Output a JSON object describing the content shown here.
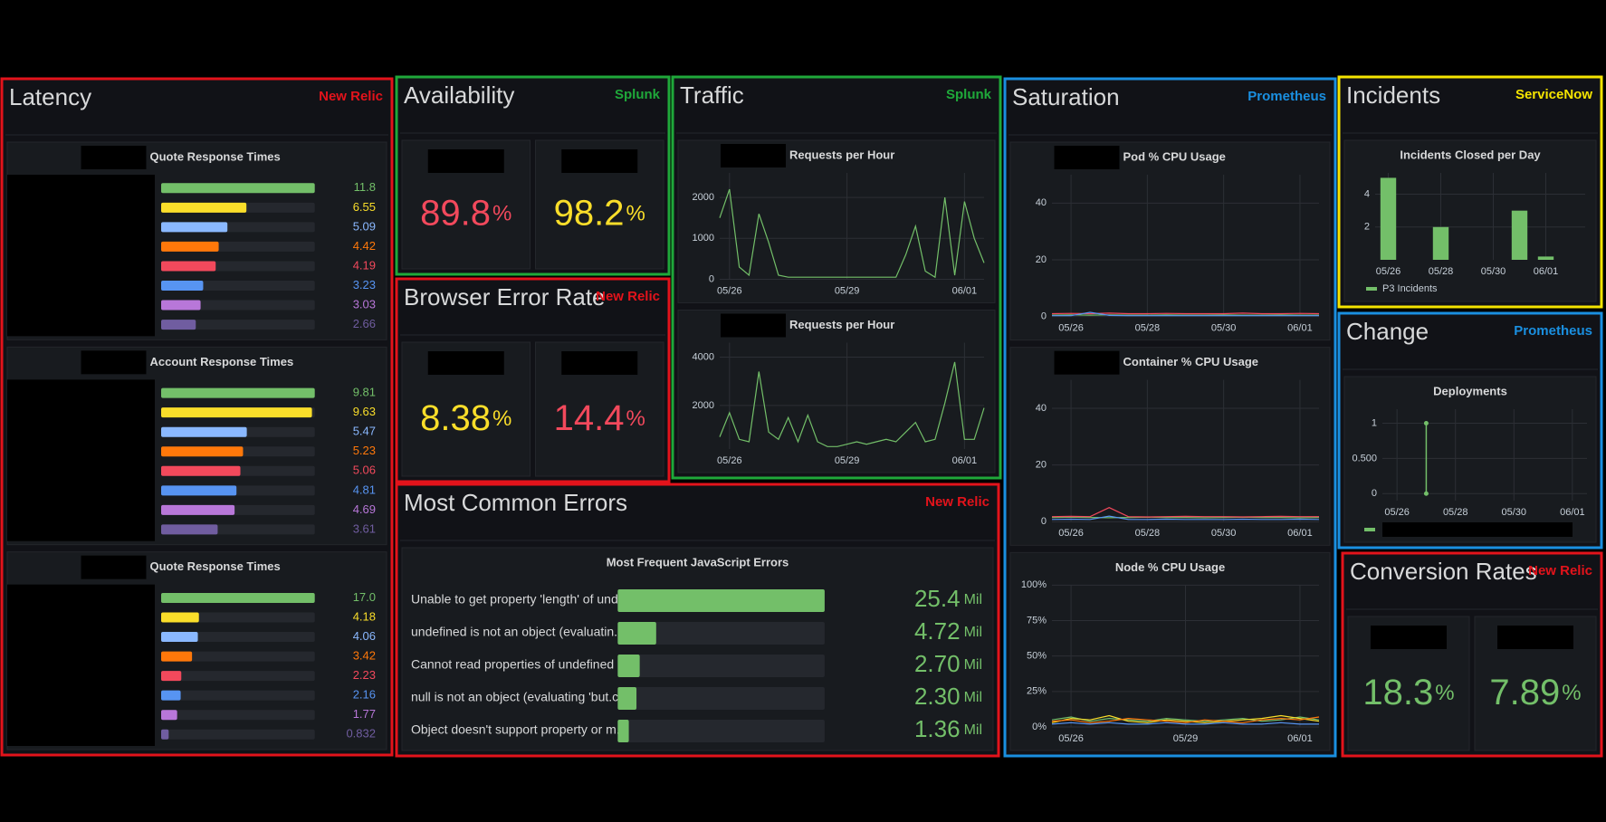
{
  "panels": [
    {
      "title": "Latency",
      "source": "New Relic",
      "color": "#e3131b",
      "charts": [
        {
          "type": "bargauge",
          "title": "Quote Response Times",
          "values": [
            11.8,
            6.55,
            5.09,
            4.42,
            4.19,
            3.23,
            3.03,
            2.66
          ],
          "colors": [
            "#73bf69",
            "#fade2a",
            "#8ab8ff",
            "#ff780a",
            "#f2495c",
            "#5794f2",
            "#b877d9",
            "#705da0"
          ]
        },
        {
          "type": "bargauge",
          "title": "Account Response Times",
          "values": [
            9.81,
            9.63,
            5.47,
            5.23,
            5.06,
            4.81,
            4.69,
            3.61
          ],
          "colors": [
            "#73bf69",
            "#fade2a",
            "#8ab8ff",
            "#ff780a",
            "#f2495c",
            "#5794f2",
            "#b877d9",
            "#705da0"
          ]
        },
        {
          "type": "bargauge",
          "title": "Quote Response Times",
          "values": [
            17,
            4.18,
            4.06,
            3.42,
            2.23,
            2.16,
            1.77,
            0.832
          ],
          "value_labels": [
            "17.0",
            "4.18",
            "4.06",
            "3.42",
            "2.23",
            "2.16",
            "1.77",
            "0.832"
          ],
          "colors": [
            "#73bf69",
            "#fade2a",
            "#8ab8ff",
            "#ff780a",
            "#f2495c",
            "#5794f2",
            "#b877d9",
            "#705da0"
          ]
        }
      ]
    },
    {
      "title": "Availability",
      "source": "Splunk",
      "color": "#1fa83a",
      "charts": [
        {
          "type": "stat",
          "values": [
            89.8,
            98.2
          ],
          "unit": "%",
          "colors": [
            "#f2495c",
            "#fade2a"
          ]
        }
      ]
    },
    {
      "title": "Browser Error Rate",
      "source": "New Relic",
      "color": "#e3131b",
      "charts": [
        {
          "type": "stat",
          "values": [
            8.38,
            14.4
          ],
          "unit": "%",
          "colors": [
            "#fade2a",
            "#f2495c"
          ]
        }
      ]
    },
    {
      "title": "Most Common Errors",
      "source": "New Relic",
      "color": "#e3131b",
      "charts": [
        {
          "type": "barlist",
          "title": "Most Frequent JavaScript Errors",
          "labels": [
            "Unable to get property 'length' of und...",
            "undefined is not an object (evaluatin...",
            "Cannot read properties of undefined ...",
            "null is not an object (evaluating 'but.c...",
            "Object doesn't support property or m..."
          ],
          "values": [
            25.4,
            4.72,
            2.7,
            2.3,
            1.36
          ],
          "value_labels": [
            "25.4",
            "4.72",
            "2.70",
            "2.30",
            "1.36"
          ],
          "unit": "Mil",
          "color": "#73bf69"
        }
      ]
    },
    {
      "title": "Traffic",
      "source": "Splunk",
      "color": "#1fa83a",
      "charts": [
        {
          "type": "line",
          "title": "Requests per Hour",
          "categories": [
            null,
            "05/26",
            null,
            null,
            null,
            null,
            null,
            null,
            null,
            null,
            null,
            null,
            null,
            "05/29",
            null,
            null,
            null,
            null,
            null,
            null,
            null,
            null,
            null,
            null,
            null,
            "06/01",
            null,
            null
          ],
          "ylim": [
            0,
            2600
          ],
          "yticks": [
            0,
            1000,
            2000
          ],
          "series": [
            {
              "color": "#73bf69",
              "values": [
                1500,
                2200,
                300,
                100,
                1600,
                900,
                100,
                50,
                50,
                50,
                50,
                50,
                50,
                50,
                50,
                50,
                50,
                50,
                50,
                600,
                1300,
                200,
                50,
                2000,
                100,
                1900,
                1000,
                400
              ]
            }
          ]
        },
        {
          "type": "line",
          "title": "Requests per Hour",
          "categories": [
            null,
            "05/26",
            null,
            null,
            null,
            null,
            null,
            null,
            null,
            null,
            null,
            null,
            null,
            "05/29",
            null,
            null,
            null,
            null,
            null,
            null,
            null,
            null,
            null,
            null,
            null,
            "06/01",
            null,
            null
          ],
          "ylim": [
            200,
            4600
          ],
          "yticks": [
            2000,
            4000
          ],
          "series": [
            {
              "color": "#73bf69",
              "values": [
                700,
                1700,
                600,
                500,
                3400,
                900,
                600,
                1500,
                500,
                1600,
                500,
                300,
                300,
                400,
                500,
                400,
                500,
                600,
                500,
                900,
                1300,
                500,
                600,
                2100,
                3800,
                600,
                600,
                1900
              ]
            }
          ]
        }
      ]
    },
    {
      "title": "Saturation",
      "source": "Prometheus",
      "color": "#1a8fe0",
      "charts": [
        {
          "type": "line",
          "title": "Pod % CPU Usage",
          "categories": [
            null,
            "05/26",
            null,
            null,
            null,
            "05/28",
            null,
            null,
            null,
            "05/30",
            null,
            null,
            null,
            "06/01",
            null
          ],
          "ylim": [
            0,
            50
          ],
          "yticks": [
            0,
            20,
            40
          ],
          "series": [
            {
              "color": "#73bf69",
              "values": [
                0.5,
                0.6,
                0.5,
                0.6,
                0.5,
                0.5,
                0.6,
                0.5,
                0.5,
                0.6,
                0.5,
                0.5,
                0.6,
                0.5,
                0.5
              ]
            },
            {
              "color": "#f2495c",
              "values": [
                1,
                1.1,
                1,
                1.2,
                1,
                1,
                1.1,
                1,
                1,
                1,
                1.2,
                1,
                1,
                1.1,
                1
              ]
            },
            {
              "color": "#5794f2",
              "values": [
                0.3,
                0.3,
                1.5,
                0.4,
                0.3,
                0.3,
                0.3,
                0.3,
                0.3,
                0.3,
                0.3,
                0.3,
                0.3,
                0.3,
                0.3
              ]
            }
          ]
        },
        {
          "type": "line",
          "title": "Container % CPU Usage",
          "categories": [
            null,
            "05/26",
            null,
            null,
            null,
            "05/28",
            null,
            null,
            null,
            "05/30",
            null,
            null,
            null,
            "06/01",
            null
          ],
          "ylim": [
            0,
            50
          ],
          "yticks": [
            0,
            20,
            40
          ],
          "series": [
            {
              "color": "#73bf69",
              "values": [
                1.5,
                1.6,
                1.5,
                1.4,
                1.5,
                1.6,
                1.5,
                1.5,
                1.4,
                1.5,
                1.6,
                1.5,
                1.5,
                1.4,
                1.5
              ]
            },
            {
              "color": "#f2495c",
              "values": [
                1.8,
                1.9,
                1.8,
                5,
                1.8,
                1.7,
                1.8,
                1.9,
                1.8,
                1.8,
                1.7,
                1.8,
                1.9,
                1.8,
                1.8
              ]
            },
            {
              "color": "#5794f2",
              "values": [
                0.8,
                0.9,
                0.8,
                2,
                0.8,
                0.8,
                0.9,
                0.8,
                0.8,
                0.8,
                0.9,
                0.8,
                0.8,
                0.9,
                0.8
              ]
            }
          ]
        },
        {
          "type": "line",
          "title": "Node % CPU Usage",
          "categories": [
            null,
            "05/26",
            null,
            null,
            null,
            null,
            null,
            "05/29",
            null,
            null,
            null,
            null,
            null,
            "06/01",
            null
          ],
          "ylim": [
            0,
            100
          ],
          "yticks": [
            {
              "value": 0,
              "label": "0%"
            },
            {
              "value": 25,
              "label": "25%"
            },
            {
              "value": 50,
              "label": "50%"
            },
            {
              "value": 75,
              "label": "75%"
            },
            {
              "value": 100,
              "label": "100%"
            }
          ],
          "series": [
            {
              "color": "#73bf69",
              "values": [
                5,
                7,
                4,
                6,
                5,
                4,
                6,
                5,
                4,
                5,
                6,
                4,
                5,
                7,
                5
              ]
            },
            {
              "color": "#fade2a",
              "values": [
                3,
                6,
                5,
                8,
                4,
                3,
                5,
                4,
                3,
                4,
                5,
                6,
                8,
                6,
                4
              ]
            },
            {
              "color": "#ff780a",
              "values": [
                4,
                5,
                3,
                4,
                6,
                5,
                4,
                3,
                5,
                4,
                3,
                5,
                6,
                5,
                7
              ]
            },
            {
              "color": "#5794f2",
              "values": [
                2,
                3,
                2,
                3,
                2,
                2,
                3,
                2,
                2,
                3,
                2,
                2,
                3,
                2,
                2
              ]
            }
          ]
        }
      ]
    },
    {
      "title": "Incidents",
      "source": "ServiceNow",
      "color": "#f5e400",
      "charts": [
        {
          "type": "bar",
          "title": "Incidents Closed per Day",
          "categories": [
            "05/26",
            null,
            "05/28",
            null,
            "05/30",
            null,
            "06/01",
            null
          ],
          "values": [
            5,
            0,
            2,
            0,
            0,
            3,
            0.2,
            0
          ],
          "ylim": [
            0,
            5.3
          ],
          "yticks": [
            2,
            4
          ],
          "color": "#73bf69",
          "legend": "P3 Incidents"
        }
      ]
    },
    {
      "title": "Change",
      "source": "Prometheus",
      "color": "#1a8fe0",
      "charts": [
        {
          "type": "stem",
          "title": "Deployments",
          "categories": [
            "05/26",
            null,
            "05/28",
            null,
            "05/30",
            null,
            "06/01"
          ],
          "values": [
            null,
            1,
            null,
            null,
            null,
            null,
            null
          ],
          "ylim": [
            -0.1,
            1.2
          ],
          "yticks": [
            0,
            {
              "value": 0.5,
              "label": "0.500"
            },
            1
          ],
          "color": "#73bf69"
        }
      ]
    },
    {
      "title": "Conversion Rates",
      "source": "New Relic",
      "color": "#e3131b",
      "charts": [
        {
          "type": "stat",
          "values": [
            18.3,
            7.89
          ],
          "unit": "%",
          "colors": [
            "#73bf69",
            "#73bf69"
          ]
        }
      ]
    }
  ]
}
